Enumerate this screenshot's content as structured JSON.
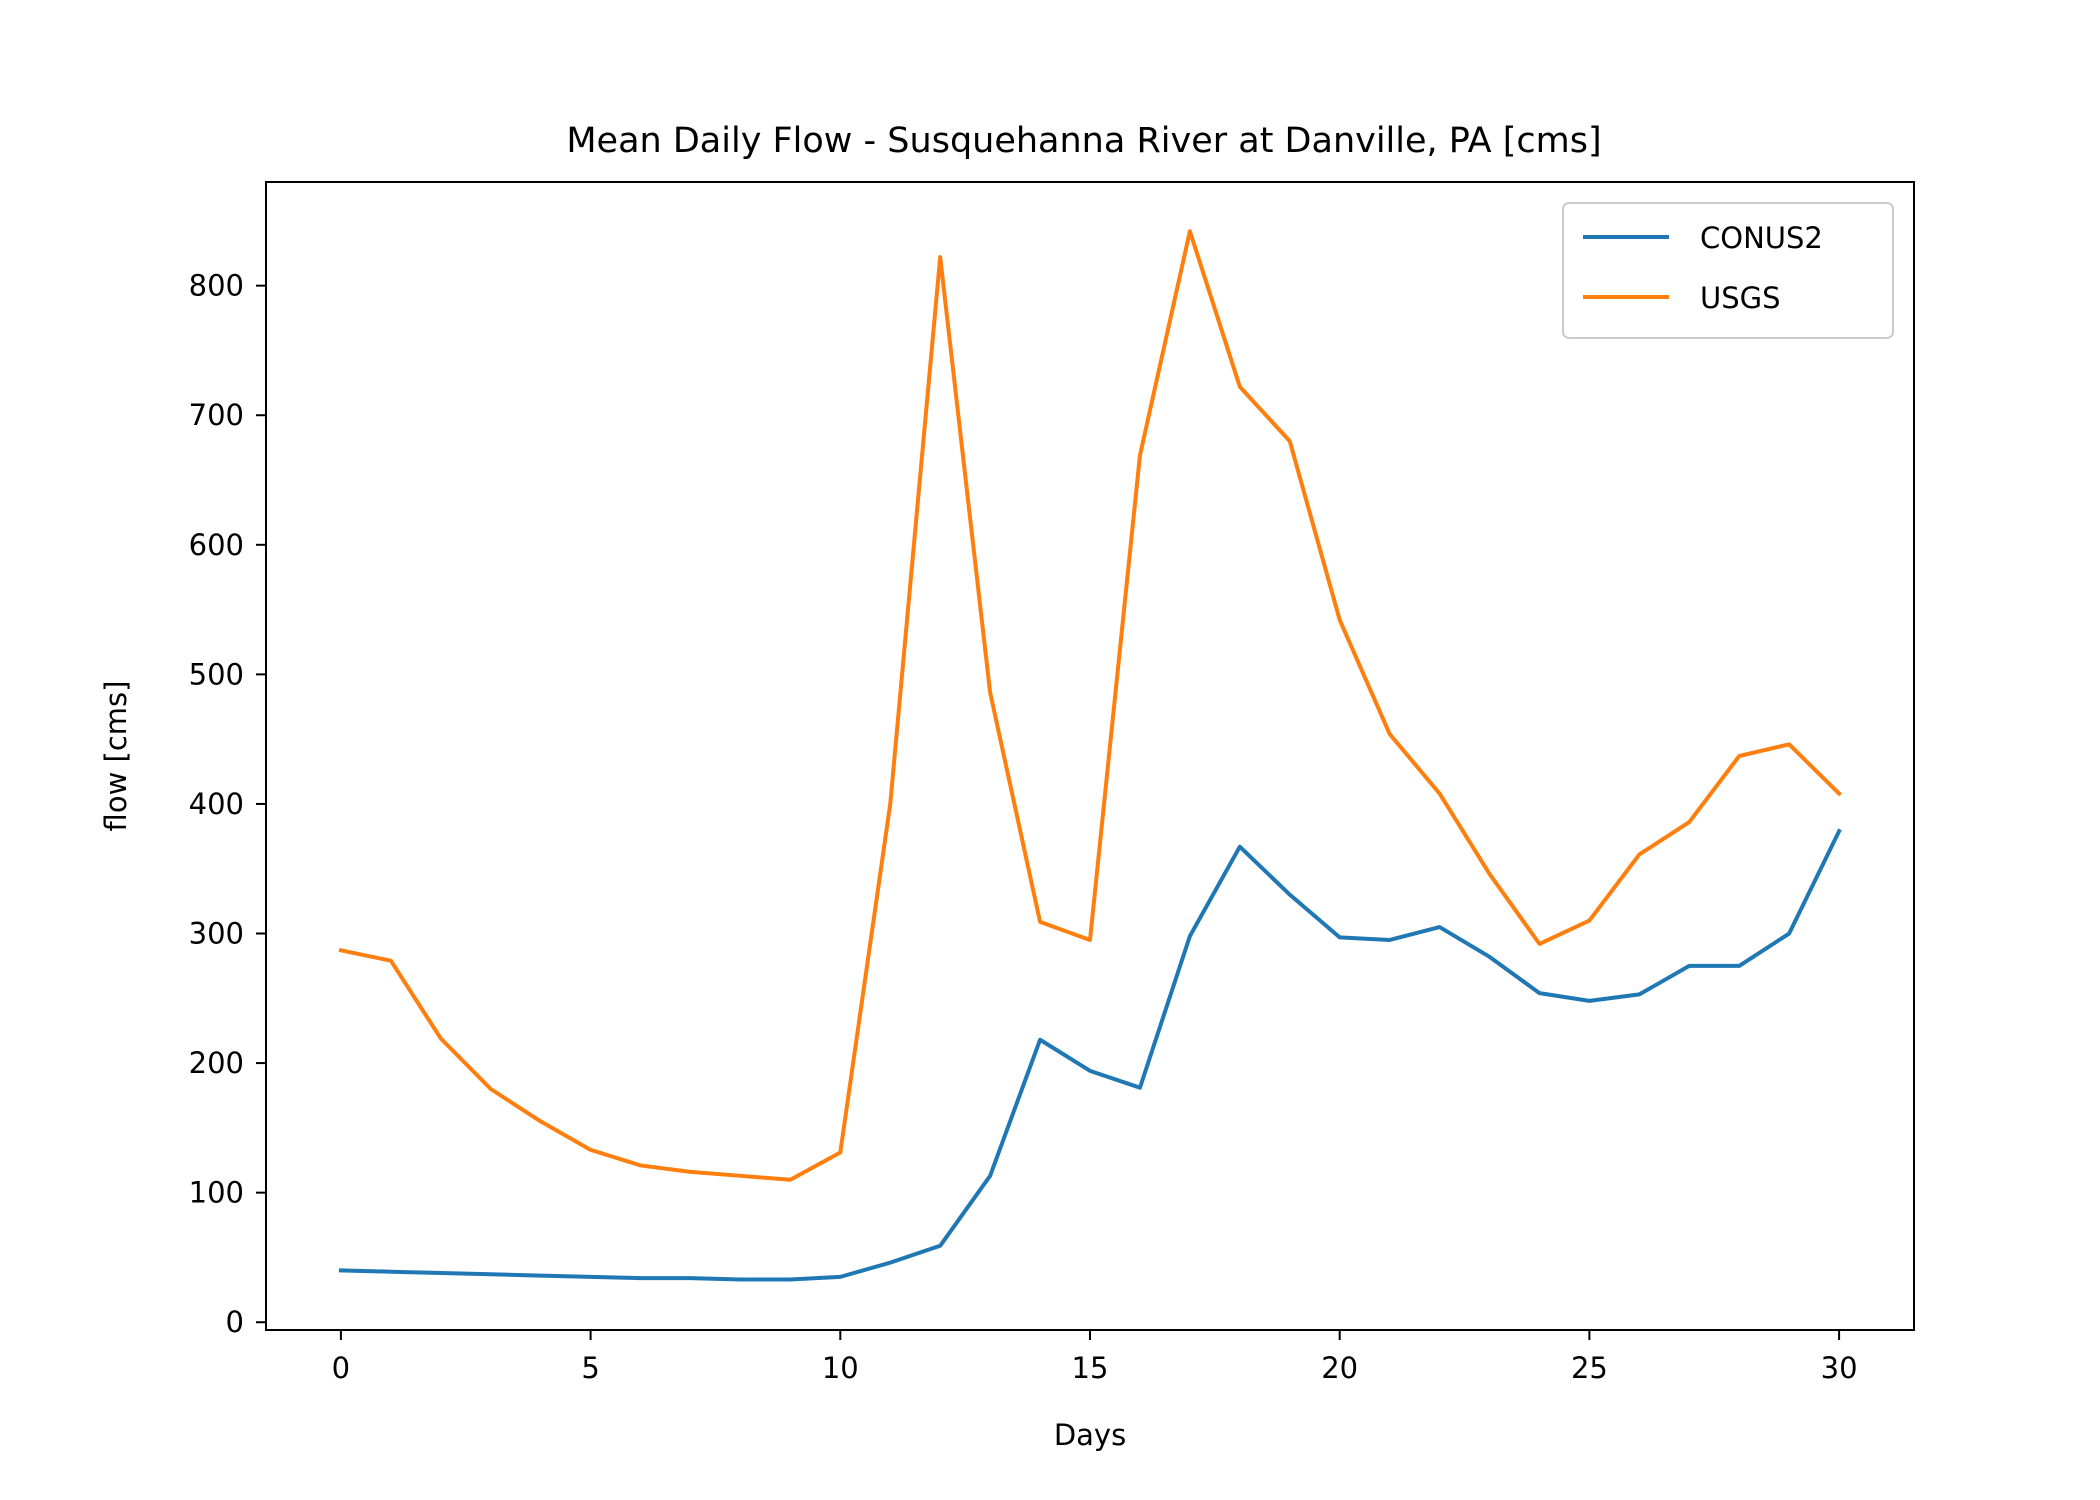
{
  "chart_data": {
    "type": "line",
    "title": "Mean Daily Flow - Susquehanna River at Danville, PA [cms]",
    "xlabel": "Days",
    "ylabel": "flow [cms]",
    "xlim": [
      -1.5,
      31.5
    ],
    "ylim": [
      -6,
      880
    ],
    "xticks": [
      0,
      5,
      10,
      15,
      20,
      25,
      30
    ],
    "yticks": [
      0,
      100,
      200,
      300,
      400,
      500,
      600,
      700,
      800
    ],
    "grid": false,
    "legend_position": "upper right",
    "x": [
      0,
      1,
      2,
      3,
      4,
      5,
      6,
      7,
      8,
      9,
      10,
      11,
      12,
      13,
      14,
      15,
      16,
      17,
      18,
      19,
      20,
      21,
      22,
      23,
      24,
      25,
      26,
      27,
      28,
      29,
      30
    ],
    "series": [
      {
        "name": "CONUS2",
        "color": "#1f77b4",
        "values": [
          40,
          39,
          38,
          37,
          36,
          35,
          34,
          34,
          33,
          33,
          35,
          46,
          59,
          113,
          218,
          194,
          181,
          298,
          367,
          330,
          297,
          295,
          305,
          282,
          254,
          248,
          253,
          275,
          275,
          300,
          379
        ]
      },
      {
        "name": "USGS",
        "color": "#ff7f0e",
        "values": [
          287,
          279,
          219,
          180,
          155,
          133,
          121,
          116,
          113,
          110,
          131,
          400,
          822,
          486,
          309,
          295,
          669,
          842,
          722,
          680,
          542,
          454,
          408,
          346,
          292,
          310,
          361,
          386,
          437,
          446,
          408
        ]
      }
    ]
  }
}
